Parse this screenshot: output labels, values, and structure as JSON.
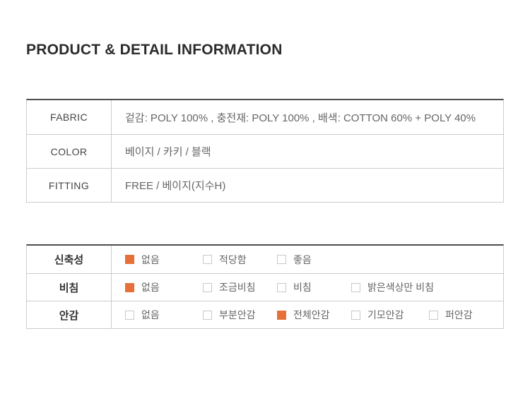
{
  "page": {
    "title": "PRODUCT & DETAIL INFORMATION"
  },
  "colors": {
    "accent_orange": "#e7703a",
    "table_top_border": "#4d4d4d",
    "table_inner_border": "#cccccc",
    "title_text": "#2b2b2b",
    "label_text": "#444444",
    "body_text": "#666666"
  },
  "spec_table": {
    "rows": [
      {
        "label": "FABRIC",
        "value": "겉감: POLY 100% , 충전재: POLY 100% , 배색: COTTON 60% + POLY 40%"
      },
      {
        "label": "COLOR",
        "value": "베이지 / 카키 / 블랙"
      },
      {
        "label": "FITTING",
        "value": "FREE / 베이지(지수H)"
      }
    ]
  },
  "option_table": {
    "rows": [
      {
        "label": "신축성",
        "options": [
          {
            "label": "없음",
            "checked": true
          },
          {
            "label": "적당함",
            "checked": false
          },
          {
            "label": "좋음",
            "checked": false
          }
        ]
      },
      {
        "label": "비침",
        "options": [
          {
            "label": "없음",
            "checked": true
          },
          {
            "label": "조금비침",
            "checked": false
          },
          {
            "label": "비침",
            "checked": false
          },
          {
            "label": "밝은색상만 비침",
            "checked": false
          }
        ]
      },
      {
        "label": "안감",
        "options": [
          {
            "label": "없음",
            "checked": false
          },
          {
            "label": "부분안감",
            "checked": false
          },
          {
            "label": "전체안감",
            "checked": true
          },
          {
            "label": "기모안감",
            "checked": false
          },
          {
            "label": "퍼안감",
            "checked": false
          }
        ]
      }
    ]
  }
}
